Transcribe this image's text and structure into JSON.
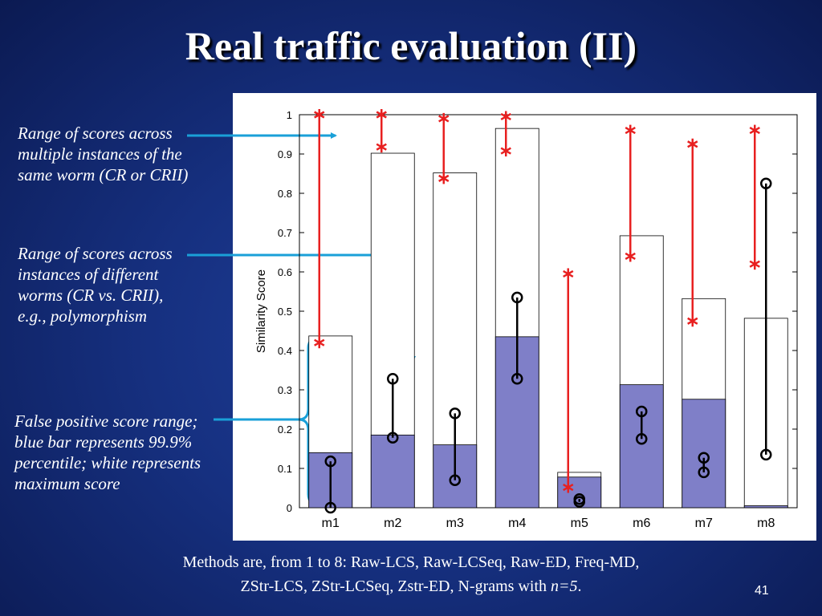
{
  "slide": {
    "title": "Real traffic evaluation (II)",
    "page_number": "41",
    "footer_line1": "Methods are, from 1 to 8: Raw-LCS, Raw-LCSeq, Raw-ED, Freq-MD,",
    "footer_line2_prefix": "ZStr-LCS, ZStr-LCSeq, Zstr-ED, N-grams with ",
    "footer_line2_var": "n=5",
    "footer_line2_suffix": "."
  },
  "annotations": {
    "note1": [
      "Range of  scores across",
      "multiple instances of  the",
      "same worm (CR or CRII)"
    ],
    "note2": [
      "Range of  scores across",
      "instances of  different",
      "worms (CR vs. CRII),",
      "e.g., polymorphism"
    ],
    "note3": [
      "False positive score range;",
      "blue bar represents 99.9%",
      "percentile; white represents",
      "maximum score"
    ]
  },
  "colors": {
    "accent_arrow": "#1aa0d8",
    "blue_bar": "#7f7fc8",
    "worm_range": "#e82020",
    "poly_range": "#000000"
  },
  "chart_data": {
    "type": "bar",
    "ylabel": "Similarity Score",
    "ylim": [
      0,
      1
    ],
    "yticks": [
      "0",
      "0.1",
      "0.2",
      "0.3",
      "0.4",
      "0.5",
      "0.6",
      "0.7",
      "0.8",
      "0.9",
      "1"
    ],
    "categories": [
      "m1",
      "m2",
      "m3",
      "m4",
      "m5",
      "m6",
      "m7",
      "m8"
    ],
    "series": [
      {
        "name": "99.9% percentile",
        "values": [
          0.14,
          0.185,
          0.16,
          0.435,
          0.078,
          0.313,
          0.276,
          0.005
        ]
      },
      {
        "name": "maximum score",
        "values": [
          0.437,
          0.902,
          0.852,
          0.965,
          0.09,
          0.692,
          0.532,
          0.482
        ]
      }
    ],
    "worm_range": [
      [
        0.42,
        1.0
      ],
      [
        0.918,
        1.0
      ],
      [
        0.838,
        0.99
      ],
      [
        0.908,
        0.995
      ],
      [
        0.052,
        0.595
      ],
      [
        0.64,
        0.96
      ],
      [
        0.475,
        0.925
      ],
      [
        0.62,
        0.96
      ]
    ],
    "poly_range": [
      [
        0.0,
        0.118
      ],
      [
        0.178,
        0.328
      ],
      [
        0.07,
        0.24
      ],
      [
        0.328,
        0.535
      ],
      [
        0.015,
        0.022
      ],
      [
        0.175,
        0.245
      ],
      [
        0.09,
        0.127
      ],
      [
        0.135,
        0.825
      ]
    ]
  }
}
